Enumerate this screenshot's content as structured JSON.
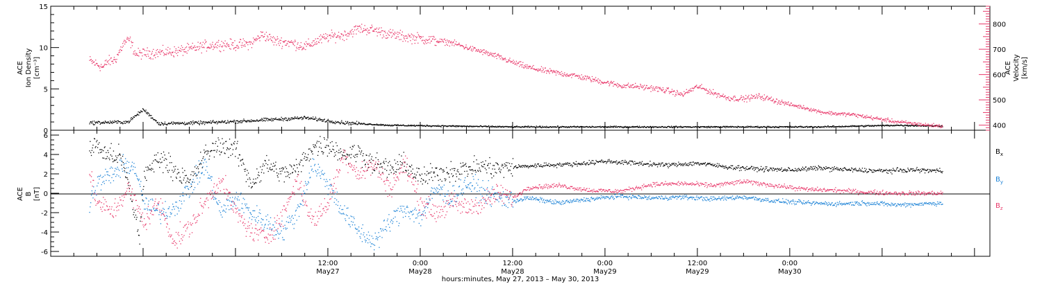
{
  "colors": {
    "black": "#000000",
    "pink": "#e8386a",
    "blue": "#1b82d6"
  },
  "chart_data": [
    {
      "type": "scatter",
      "panel": "top",
      "ylabel_left": [
        "ACE",
        "Ion Density",
        "[cm⁻³]"
      ],
      "ylabel_right": [
        "ACE",
        "Velocity",
        "[km/s]"
      ],
      "ylim_left": [
        0,
        15
      ],
      "yticks_left": [
        "0",
        "5",
        "10",
        "15"
      ],
      "ylim_right": [
        380,
        870
      ],
      "yticks_right": [
        "400",
        "500",
        "600",
        "700",
        "800"
      ],
      "x_hours": [
        [
          0,
          5.0,
          8.4
        ],
        [
          1,
          6.8,
          7.6
        ],
        [
          2,
          7.3,
          8.3
        ],
        [
          3,
          8.3,
          8.5
        ],
        [
          4,
          9.5,
          10.6
        ],
        [
          5,
          10.2,
          10.9
        ],
        [
          6,
          11.0,
          9.2
        ],
        [
          7,
          12.3,
          9.3
        ],
        [
          8,
          14.0,
          9.4
        ],
        [
          9,
          16.0,
          9.5
        ],
        [
          10,
          18.0,
          9.8
        ],
        [
          11,
          20.0,
          10.2
        ],
        [
          12,
          22.0,
          10.4
        ],
        [
          13,
          24.0,
          10.3
        ],
        [
          14,
          26.0,
          10.5
        ],
        [
          15,
          27.5,
          11.6
        ],
        [
          16,
          29.0,
          10.8
        ],
        [
          17,
          31.0,
          10.6
        ],
        [
          18,
          33.0,
          10.1
        ],
        [
          19,
          34.3,
          10.7
        ],
        [
          20,
          36.0,
          11.3
        ],
        [
          21,
          38.0,
          11.5
        ],
        [
          22,
          40.0,
          12.3
        ],
        [
          23,
          42.0,
          12.1
        ],
        [
          24,
          44.0,
          11.6
        ],
        [
          25,
          46.0,
          11.3
        ],
        [
          26,
          48.0,
          11.1
        ],
        [
          27,
          50.0,
          10.8
        ],
        [
          28,
          52.0,
          10.6
        ],
        [
          29,
          54.0,
          10.0
        ],
        [
          30,
          56.0,
          9.5
        ],
        [
          31,
          58.0,
          8.9
        ],
        [
          32,
          60.0,
          8.2
        ],
        [
          33,
          62.0,
          7.6
        ],
        [
          34,
          64.0,
          7.2
        ],
        [
          35,
          66.0,
          6.9
        ],
        [
          36,
          68.0,
          6.6
        ],
        [
          37,
          70.0,
          6.2
        ],
        [
          38,
          72.0,
          5.8
        ],
        [
          39,
          74.0,
          5.4
        ],
        [
          40,
          76.0,
          5.3
        ],
        [
          41,
          78.0,
          5.1
        ],
        [
          42,
          80.0,
          4.8
        ],
        [
          43,
          82.0,
          4.3
        ],
        [
          44,
          84.0,
          5.3
        ],
        [
          45,
          86.0,
          4.5
        ],
        [
          46,
          88.0,
          3.9
        ],
        [
          47,
          90.0,
          3.8
        ],
        [
          48,
          92.0,
          4.1
        ],
        [
          49,
          94.0,
          3.6
        ],
        [
          50,
          96.0,
          3.1
        ],
        [
          51,
          98.0,
          2.7
        ],
        [
          52,
          100.0,
          2.2
        ],
        [
          53,
          102.0,
          2.0
        ],
        [
          54,
          104.0,
          1.9
        ],
        [
          55,
          106.0,
          1.6
        ],
        [
          56,
          108.0,
          1.3
        ],
        [
          57,
          110.0,
          1.0
        ],
        [
          58,
          112.0,
          0.8
        ],
        [
          59,
          114.0,
          0.6
        ],
        [
          60,
          115.8,
          0.5
        ]
      ],
      "density_anchors": [
        [
          5.0,
          0.9
        ],
        [
          10.0,
          1.0
        ],
        [
          12.0,
          2.5
        ],
        [
          14.0,
          0.8
        ],
        [
          20.0,
          0.9
        ],
        [
          25.0,
          1.1
        ],
        [
          33.0,
          1.5
        ],
        [
          38.0,
          0.9
        ],
        [
          44.0,
          0.6
        ],
        [
          60.0,
          0.4
        ],
        [
          80.0,
          0.4
        ],
        [
          100.0,
          0.4
        ],
        [
          110.0,
          0.6
        ],
        [
          115.8,
          0.5
        ]
      ]
    },
    {
      "type": "scatter",
      "panel": "bottom",
      "ylabel_left": [
        "ACE",
        "B",
        "[nT]"
      ],
      "ylim": [
        -6.5,
        6.5
      ],
      "yticks": [
        "-6",
        "-4",
        "-2",
        "0",
        "2",
        "4",
        "6"
      ],
      "legend": [
        "Bx",
        "By",
        "Bz"
      ],
      "Bx": [
        [
          5.0,
          4.5
        ],
        [
          6.0,
          5.0
        ],
        [
          7.0,
          4.0
        ],
        [
          9.0,
          3.8
        ],
        [
          10.0,
          1.0
        ],
        [
          11.5,
          -4.5
        ],
        [
          12.0,
          1.5
        ],
        [
          14.0,
          3.8
        ],
        [
          16.0,
          2.5
        ],
        [
          18.0,
          1.0
        ],
        [
          20.0,
          4.0
        ],
        [
          22.0,
          5.0
        ],
        [
          24.0,
          4.5
        ],
        [
          26.0,
          1.0
        ],
        [
          28.0,
          3.0
        ],
        [
          30.0,
          2.0
        ],
        [
          32.0,
          2.5
        ],
        [
          34.0,
          4.8
        ],
        [
          36.0,
          5.0
        ],
        [
          38.0,
          4.0
        ],
        [
          40.0,
          4.2
        ],
        [
          42.0,
          3.0
        ],
        [
          44.0,
          2.5
        ],
        [
          46.0,
          3.0
        ],
        [
          48.0,
          1.5
        ],
        [
          50.0,
          2.0
        ],
        [
          52.0,
          2.3
        ],
        [
          54.0,
          2.5
        ],
        [
          56.0,
          2.8
        ],
        [
          58.0,
          2.5
        ],
        [
          60.0,
          2.7
        ],
        [
          64.0,
          2.9
        ],
        [
          68.0,
          3.0
        ],
        [
          72.0,
          3.3
        ],
        [
          76.0,
          3.1
        ],
        [
          80.0,
          2.9
        ],
        [
          84.0,
          3.1
        ],
        [
          88.0,
          2.7
        ],
        [
          92.0,
          2.5
        ],
        [
          96.0,
          2.4
        ],
        [
          100.0,
          2.6
        ],
        [
          104.0,
          2.4
        ],
        [
          108.0,
          2.3
        ],
        [
          112.0,
          2.4
        ],
        [
          115.8,
          2.3
        ]
      ],
      "By": [
        [
          5.0,
          -1.0
        ],
        [
          6.0,
          1.0
        ],
        [
          8.0,
          2.0
        ],
        [
          10.0,
          3.0
        ],
        [
          11.0,
          2.5
        ],
        [
          12.0,
          -1.0
        ],
        [
          14.0,
          -2.0
        ],
        [
          16.0,
          -1.5
        ],
        [
          18.0,
          0.5
        ],
        [
          20.0,
          3.0
        ],
        [
          22.0,
          -2.0
        ],
        [
          24.0,
          -0.5
        ],
        [
          26.0,
          -2.0
        ],
        [
          28.0,
          -3.0
        ],
        [
          30.0,
          -4.0
        ],
        [
          32.0,
          -2.0
        ],
        [
          34.0,
          3.0
        ],
        [
          36.0,
          1.0
        ],
        [
          38.0,
          -2.0
        ],
        [
          40.0,
          -4.0
        ],
        [
          42.0,
          -5.0
        ],
        [
          44.0,
          -3.0
        ],
        [
          46.0,
          -1.5
        ],
        [
          48.0,
          -2.5
        ],
        [
          50.0,
          0.5
        ],
        [
          52.0,
          -0.5
        ],
        [
          54.0,
          1.0
        ],
        [
          56.0,
          0.2
        ],
        [
          58.0,
          -0.5
        ],
        [
          60.0,
          -0.8
        ],
        [
          62.0,
          -0.5
        ],
        [
          66.0,
          -1.0
        ],
        [
          70.0,
          -0.6
        ],
        [
          74.0,
          -0.3
        ],
        [
          78.0,
          -0.5
        ],
        [
          82.0,
          -0.4
        ],
        [
          86.0,
          -0.6
        ],
        [
          90.0,
          -0.4
        ],
        [
          94.0,
          -0.8
        ],
        [
          98.0,
          -1.0
        ],
        [
          102.0,
          -1.1
        ],
        [
          106.0,
          -1.0
        ],
        [
          110.0,
          -1.2
        ],
        [
          115.8,
          -1.0
        ]
      ],
      "Bz": [
        [
          5.0,
          2.0
        ],
        [
          6.0,
          -1.0
        ],
        [
          8.0,
          -2.0
        ],
        [
          10.0,
          0.5
        ],
        [
          11.0,
          -1.0
        ],
        [
          12.0,
          -3.0
        ],
        [
          14.0,
          -1.0
        ],
        [
          16.0,
          -5.0
        ],
        [
          18.0,
          -3.5
        ],
        [
          20.0,
          -1.0
        ],
        [
          22.0,
          1.5
        ],
        [
          24.0,
          -2.0
        ],
        [
          26.0,
          -4.0
        ],
        [
          28.0,
          -4.5
        ],
        [
          30.0,
          -2.5
        ],
        [
          32.0,
          1.5
        ],
        [
          34.0,
          -3.0
        ],
        [
          36.0,
          -1.0
        ],
        [
          38.0,
          4.0
        ],
        [
          40.0,
          2.0
        ],
        [
          42.0,
          3.0
        ],
        [
          44.0,
          0.5
        ],
        [
          46.0,
          3.0
        ],
        [
          48.0,
          -1.0
        ],
        [
          50.0,
          -2.0
        ],
        [
          52.0,
          -1.0
        ],
        [
          54.0,
          -1.5
        ],
        [
          56.0,
          -1.0
        ],
        [
          58.0,
          0.0
        ],
        [
          60.0,
          -0.5
        ],
        [
          62.0,
          0.6
        ],
        [
          66.0,
          0.8
        ],
        [
          70.0,
          0.3
        ],
        [
          74.0,
          0.2
        ],
        [
          78.0,
          0.9
        ],
        [
          82.0,
          1.0
        ],
        [
          86.0,
          0.8
        ],
        [
          90.0,
          1.2
        ],
        [
          94.0,
          0.8
        ],
        [
          98.0,
          0.4
        ],
        [
          102.0,
          0.3
        ],
        [
          106.0,
          0.1
        ],
        [
          110.0,
          0.0
        ],
        [
          115.8,
          0.0
        ]
      ],
      "x_tick_labels": [
        {
          "hour": 36,
          "time": "12:00",
          "date": "May27"
        },
        {
          "hour": 48,
          "time": "0:00",
          "date": "May28"
        },
        {
          "hour": 60,
          "time": "12:00",
          "date": "May28"
        },
        {
          "hour": 72,
          "time": "0:00",
          "date": "May29"
        },
        {
          "hour": 84,
          "time": "12:00",
          "date": "May29"
        },
        {
          "hour": 96,
          "time": "0:00",
          "date": "May30"
        }
      ],
      "xlim_hours": [
        0,
        122
      ],
      "xlabel": "hours:minutes, May 27, 2013 – May 30, 2013"
    }
  ],
  "legend_labels": {
    "bx": "B",
    "bx_sub": "x",
    "by": "B",
    "by_sub": "y",
    "bz": "B",
    "bz_sub": "z"
  },
  "texts": {
    "top_left_1": "ACE",
    "top_left_2": "Ion Density",
    "top_left_3": "[cm⁻³]",
    "top_right_1": "ACE",
    "top_right_2": "Velocity",
    "top_right_3": "[km/s]",
    "bot_left_1": "ACE",
    "bot_left_2": "B",
    "bot_left_3": "[nT]",
    "xlabel": "hours:minutes, May 27, 2013 – May 30, 2013"
  }
}
